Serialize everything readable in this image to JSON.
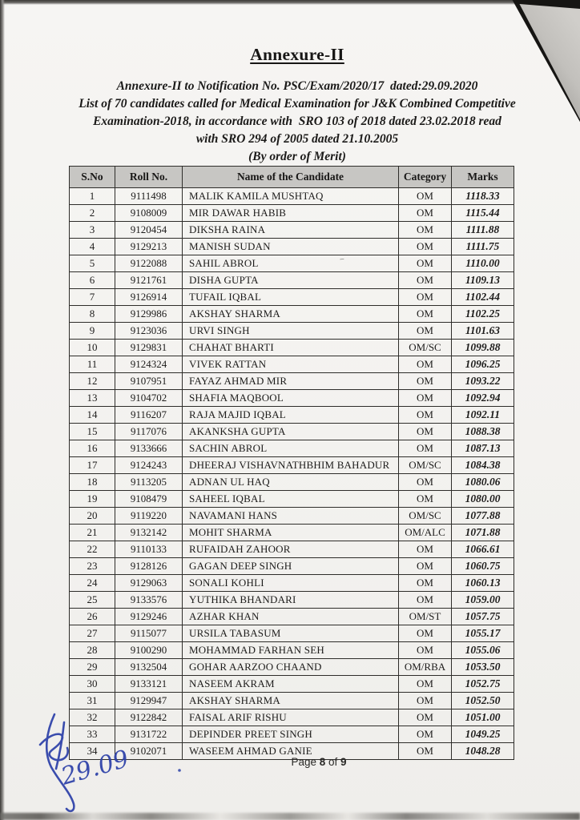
{
  "document": {
    "title": "Annexure-II",
    "subtitle_lines": [
      "Annexure-II to Notification No. PSC/Exam/2020/17  dated:29.09.2020",
      "List of 70 candidates called for Medical Examination for J&K Combined Competitive",
      "Examination-2018, in accordance with  SRO 103 of 2018 dated 23.02.2018 read",
      "with SRO 294 of 2005 dated 21.10.2005",
      "(By order of Merit)"
    ]
  },
  "table": {
    "headers": [
      "S.No",
      "Roll No.",
      "Name of the Candidate",
      "Category",
      "Marks"
    ],
    "rows": [
      [
        "1",
        "9111498",
        "MALIK KAMILA MUSHTAQ",
        "OM",
        "1118.33"
      ],
      [
        "2",
        "9108009",
        "MIR DAWAR HABIB",
        "OM",
        "1115.44"
      ],
      [
        "3",
        "9120454",
        "DIKSHA RAINA",
        "OM",
        "1111.88"
      ],
      [
        "4",
        "9129213",
        "MANISH SUDAN",
        "OM",
        "1111.75"
      ],
      [
        "5",
        "9122088",
        "SAHIL ABROL",
        "OM",
        "1110.00"
      ],
      [
        "6",
        "9121761",
        "DISHA GUPTA",
        "OM",
        "1109.13"
      ],
      [
        "7",
        "9126914",
        "TUFAIL IQBAL",
        "OM",
        "1102.44"
      ],
      [
        "8",
        "9129986",
        "AKSHAY SHARMA",
        "OM",
        "1102.25"
      ],
      [
        "9",
        "9123036",
        "URVI SINGH",
        "OM",
        "1101.63"
      ],
      [
        "10",
        "9129831",
        "CHAHAT BHARTI",
        "OM/SC",
        "1099.88"
      ],
      [
        "11",
        "9124324",
        "VIVEK RATTAN",
        "OM",
        "1096.25"
      ],
      [
        "12",
        "9107951",
        "FAYAZ AHMAD MIR",
        "OM",
        "1093.22"
      ],
      [
        "13",
        "9104702",
        "SHAFIA MAQBOOL",
        "OM",
        "1092.94"
      ],
      [
        "14",
        "9116207",
        "RAJA MAJID IQBAL",
        "OM",
        "1092.11"
      ],
      [
        "15",
        "9117076",
        "AKANKSHA  GUPTA",
        "OM",
        "1088.38"
      ],
      [
        "16",
        "9133666",
        "SACHIN ABROL",
        "OM",
        "1087.13"
      ],
      [
        "17",
        "9124243",
        "DHEERAJ VISHAVNATHBHIM BAHADUR",
        "OM/SC",
        "1084.38"
      ],
      [
        "18",
        "9113205",
        "ADNAN UL HAQ",
        "OM",
        "1080.06"
      ],
      [
        "19",
        "9108479",
        "SAHEEL IQBAL",
        "OM",
        "1080.00"
      ],
      [
        "20",
        "9119220",
        "NAVAMANI HANS",
        "OM/SC",
        "1077.88"
      ],
      [
        "21",
        "9132142",
        "MOHIT SHARMA",
        "OM/ALC",
        "1071.88"
      ],
      [
        "22",
        "9110133",
        "RUFAIDAH ZAHOOR",
        "OM",
        "1066.61"
      ],
      [
        "23",
        "9128126",
        "GAGAN DEEP SINGH",
        "OM",
        "1060.75"
      ],
      [
        "24",
        "9129063",
        "SONALI KOHLI",
        "OM",
        "1060.13"
      ],
      [
        "25",
        "9133576",
        "YUTHIKA BHANDARI",
        "OM",
        "1059.00"
      ],
      [
        "26",
        "9129246",
        "AZHAR KHAN",
        "OM/ST",
        "1057.75"
      ],
      [
        "27",
        "9115077",
        "URSILA TABASUM",
        "OM",
        "1055.17"
      ],
      [
        "28",
        "9100290",
        "MOHAMMAD FARHAN SEH",
        "OM",
        "1055.06"
      ],
      [
        "29",
        "9132504",
        "GOHAR AARZOO CHAAND",
        "OM/RBA",
        "1053.50"
      ],
      [
        "30",
        "9133121",
        "NASEEM AKRAM",
        "OM",
        "1052.75"
      ],
      [
        "31",
        "9129947",
        "AKSHAY SHARMA",
        "OM",
        "1052.50"
      ],
      [
        "32",
        "9122842",
        "FAISAL ARIF RISHU",
        "OM",
        "1051.00"
      ],
      [
        "33",
        "9131722",
        "DEPINDER PREET SINGH",
        "OM",
        "1049.25"
      ],
      [
        "34",
        "9102071",
        "WASEEM AHMAD GANIE",
        "OM",
        "1048.28"
      ]
    ]
  },
  "footer": {
    "page_word": "Page",
    "page_number": "8",
    "of_word": "of",
    "total_pages": "9"
  },
  "signature": {
    "handwritten_date": "29.09"
  },
  "colors": {
    "paper": "#f3f2ef",
    "table_header_bg": "#c7c6c3",
    "table_border": "#2e2d2a",
    "text": "#1c1b1a",
    "signature_ink": "#2b3fa8"
  }
}
